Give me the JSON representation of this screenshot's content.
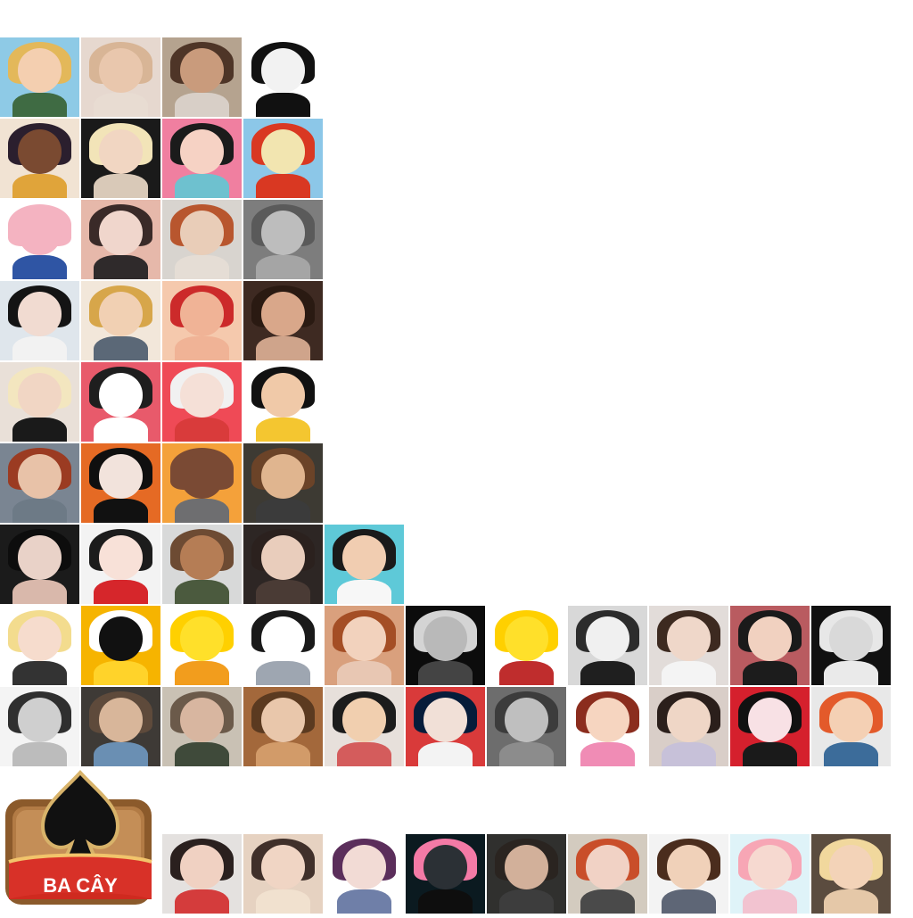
{
  "logo": {
    "text": "BA CÂY"
  },
  "tiles": [
    {
      "bg": "#8ecae6",
      "face": "#f4cfb0",
      "hair": "#e3b85a",
      "body": "#3f6b43"
    },
    {
      "bg": "#e6d8cf",
      "face": "#e9c7ad",
      "hair": "#d8b596",
      "body": "#e8dcd2"
    },
    {
      "bg": "#b5a38f",
      "face": "#c99b7c",
      "hair": "#4e3527",
      "body": "#d8cfc7"
    },
    {
      "bg": "#ffffff",
      "face": "#f2f2f2",
      "hair": "#111111",
      "body": "#111111"
    },
    {
      "bg": "#f1e3d3",
      "face": "#7a4a31",
      "hair": "#2b1f2e",
      "body": "#e0a43a"
    },
    {
      "bg": "#1a1a1a",
      "face": "#f1d6c2",
      "hair": "#f2e4b8",
      "body": "#d9c9b8"
    },
    {
      "bg": "#f07fa0",
      "face": "#f6d2c4",
      "hair": "#1b1b1b",
      "body": "#6ec1cf"
    },
    {
      "bg": "#8cc7e8",
      "face": "#f2e5b0",
      "hair": "#d93822",
      "body": "#d93822"
    },
    {
      "bg": "#ffffff",
      "face": "#f4b3c1",
      "hair": "#f4b3c1",
      "body": "#2f55a4"
    },
    {
      "bg": "#e6b8aa",
      "face": "#f0d6cc",
      "hair": "#3a2a28",
      "body": "#2f2a2b"
    },
    {
      "bg": "#d8d4cf",
      "face": "#e9cdb8",
      "hair": "#b8562e",
      "body": "#e5ddd5"
    },
    {
      "bg": "#7d7d7d",
      "face": "#bdbdbd",
      "hair": "#5a5a5a",
      "body": "#a5a5a5"
    },
    {
      "bg": "#dfe6ec",
      "face": "#f1dbd1",
      "hair": "#141414",
      "body": "#f2f2f2"
    },
    {
      "bg": "#f2e7da",
      "face": "#f1d0b3",
      "hair": "#d7a64a",
      "body": "#5b6877"
    },
    {
      "bg": "#f5c9ad",
      "face": "#f0b396",
      "hair": "#cc2a2a",
      "body": "#f0b396"
    },
    {
      "bg": "#3e2a22",
      "face": "#d9a78a",
      "hair": "#2a1a12",
      "body": "#cfa48b"
    },
    {
      "bg": "#e9e0d8",
      "face": "#f1d6c4",
      "hair": "#f3e6bf",
      "body": "#1a1a1a"
    },
    {
      "bg": "#e85a6b",
      "face": "#ffffff",
      "hair": "#1e1e1e",
      "body": "#ffffff"
    },
    {
      "bg": "#ef4a56",
      "face": "#f5e0d7",
      "hair": "#f1f1f1",
      "body": "#d93b3b"
    },
    {
      "bg": "#ffffff",
      "face": "#f0c9a8",
      "hair": "#111111",
      "body": "#f4c630"
    },
    {
      "bg": "#7a8592",
      "face": "#e8c2a8",
      "hair": "#9b3b22",
      "body": "#6d7a86"
    },
    {
      "bg": "#e56a24",
      "face": "#f2e3dc",
      "hair": "#0f0f0f",
      "body": "#111111"
    },
    {
      "bg": "#f4a13a",
      "face": "#7a4a34",
      "hair": "#7a4a34",
      "body": "#6e6e70"
    },
    {
      "bg": "#3d3a33",
      "face": "#e0b58f",
      "hair": "#6b4328",
      "body": "#3b3b3b"
    },
    {
      "bg": "#1b1b1b",
      "face": "#e9d2c8",
      "hair": "#0d0d0d",
      "body": "#d9b8ab"
    },
    {
      "bg": "#f3f3f3",
      "face": "#f8e1d8",
      "hair": "#1c1c1c",
      "body": "#d6262b"
    },
    {
      "bg": "#d8d9d9",
      "face": "#b57d55",
      "hair": "#6d4b33",
      "body": "#4b5a3e"
    },
    {
      "bg": "#2d2624",
      "face": "#e9cdbc",
      "hair": "#2b211e",
      "body": "#4a3b35"
    },
    {
      "bg": "#5ec9d8",
      "face": "#f1cdb1",
      "hair": "#1a1a1a",
      "body": "#f7f7f7"
    },
    {
      "bg": "#ffffff",
      "face": "#f6dccd",
      "hair": "#f3dc8e",
      "body": "#333333"
    },
    {
      "bg": "#f6b400",
      "face": "#111111",
      "hair": "#ffffff",
      "body": "#ffd32a"
    },
    {
      "bg": "#ffffff",
      "face": "#ffe02a",
      "hair": "#ffd000",
      "body": "#f29d1d"
    },
    {
      "bg": "#ffffff",
      "face": "#ffffff",
      "hair": "#1a1a1a",
      "body": "#9ea6b1"
    },
    {
      "bg": "#d9a07d",
      "face": "#f2d2bd",
      "hair": "#a44e25",
      "body": "#e8c7b3"
    },
    {
      "bg": "#0c0c0c",
      "face": "#b9b9b9",
      "hair": "#d4d4d4",
      "body": "#444444"
    },
    {
      "bg": "#ffffff",
      "face": "#ffe02a",
      "hair": "#ffd000",
      "body": "#bf2d2d"
    },
    {
      "bg": "#d8d8d8",
      "face": "#f0f0f0",
      "hair": "#2c2c2c",
      "body": "#1f1f1f"
    },
    {
      "bg": "#e2dcd9",
      "face": "#efd7c9",
      "hair": "#3d2a20",
      "body": "#f4f4f4"
    },
    {
      "bg": "#b95b60",
      "face": "#f1d1c0",
      "hair": "#1a1a1a",
      "body": "#1c1c1c"
    },
    {
      "bg": "#111111",
      "face": "#d9d9d9",
      "hair": "#e7e7e7",
      "body": "#eaeaea"
    },
    {
      "bg": "#f4f4f4",
      "face": "#cfcfcf",
      "hair": "#2f2f2f",
      "body": "#bcbcbc"
    },
    {
      "bg": "#3e3a36",
      "face": "#d8b69a",
      "hair": "#5e4a3b",
      "body": "#6a8fb3"
    },
    {
      "bg": "#c9c1b4",
      "face": "#d8b6a0",
      "hair": "#6b5a4a",
      "body": "#3f4a3a"
    },
    {
      "bg": "#a3683b",
      "face": "#e9c7ab",
      "hair": "#5b3a20",
      "body": "#d29b69"
    },
    {
      "bg": "#e7e0db",
      "face": "#f1cfaf",
      "hair": "#1c1c1c",
      "body": "#d45c5c"
    },
    {
      "bg": "#d93a3a",
      "face": "#f1e0d7",
      "hair": "#061c3a",
      "body": "#f3f3f3"
    },
    {
      "bg": "#6d6d6d",
      "face": "#bfbfbf",
      "hair": "#3c3c3c",
      "body": "#8c8c8c"
    },
    {
      "bg": "#ffffff",
      "face": "#f6d5c0",
      "hair": "#8b2d1e",
      "body": "#f08cb5"
    },
    {
      "bg": "#d9cec8",
      "face": "#efd6c6",
      "hair": "#2b1f1b",
      "body": "#c7c1d9"
    },
    {
      "bg": "#d5202d",
      "face": "#f8e1e5",
      "hair": "#111111",
      "body": "#1a1a1a"
    },
    {
      "bg": "#e8e8e8",
      "face": "#f4d0b4",
      "hair": "#e35a2a",
      "body": "#3c6c9a"
    },
    {
      "bg": "#e4e1df",
      "face": "#f0d1c2",
      "hair": "#2a201e",
      "body": "#d43c3c"
    },
    {
      "bg": "#e6d2c1",
      "face": "#f0d5c4",
      "hair": "#40302a",
      "body": "#f1e1cf"
    },
    {
      "bg": "#ffffff",
      "face": "#f2dbd5",
      "hair": "#5b2e5b",
      "body": "#6f7fa8"
    },
    {
      "bg": "#0b1a20",
      "face": "#2b3035",
      "hair": "#f47aa6",
      "body": "#0e0e0e"
    },
    {
      "bg": "#30302e",
      "face": "#d2b09a",
      "hair": "#2a2420",
      "body": "#3d3d3d"
    },
    {
      "bg": "#d3cbbf",
      "face": "#f1d2c5",
      "hair": "#c94e2a",
      "body": "#4a4a4a"
    },
    {
      "bg": "#f3f3f3",
      "face": "#f0d1b9",
      "hair": "#4b2d1d",
      "body": "#5e6676"
    },
    {
      "bg": "#dff3f8",
      "face": "#f6d9d0",
      "hair": "#f7a6b5",
      "body": "#f2c3d0"
    },
    {
      "bg": "#5b4c3f",
      "face": "#f3d3b8",
      "hair": "#f1d89d",
      "body": "#e5c8a8"
    }
  ]
}
